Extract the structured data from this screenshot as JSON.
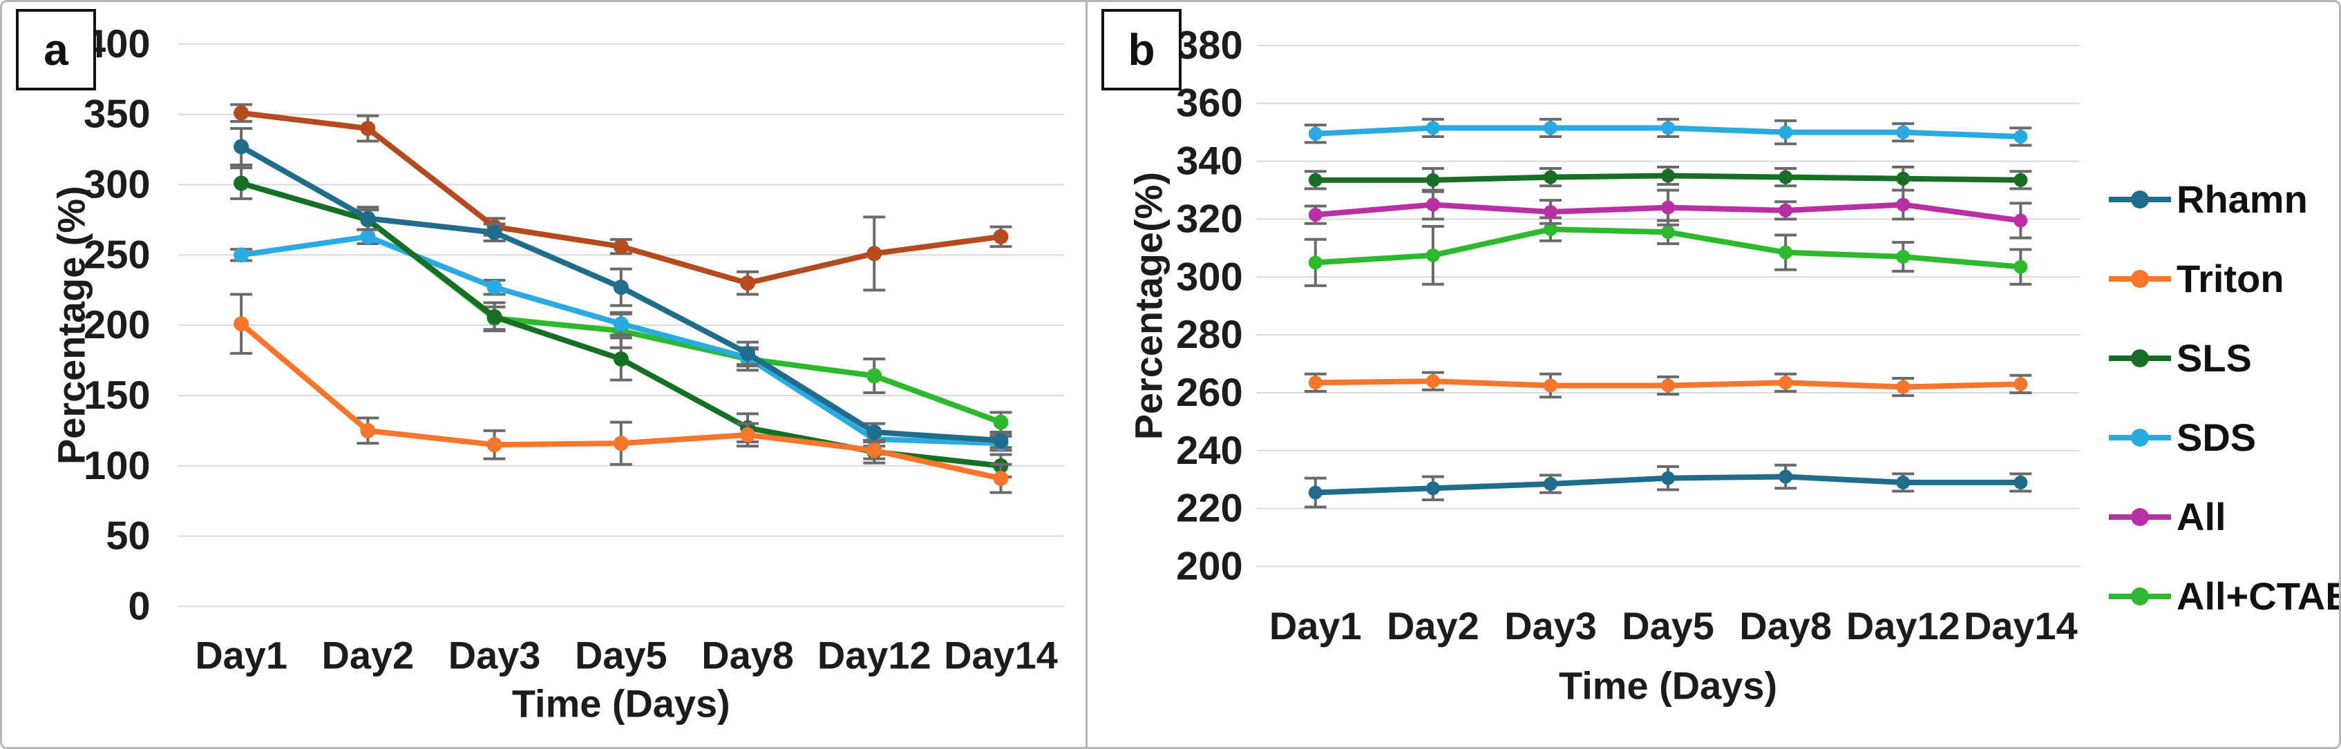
{
  "figure": {
    "panels": [
      {
        "label": "a",
        "ylabel": "Percentage (%)",
        "xlabel": "Time (Days)"
      },
      {
        "label": "b",
        "ylabel": "Percentage(%)",
        "xlabel": "Time (Days)"
      }
    ]
  },
  "colors": {
    "grid": "#d9d9d9",
    "error_bar": "#6a6a6a",
    "panel_border": "#b7b7b7",
    "text": "#1c1c1c",
    "rhamn": "#1f6c8b",
    "triton": "#f8752c",
    "sls": "#176f26",
    "sds": "#29abe2",
    "all_panel_a": "#b54a1e",
    "all_panel_b": "#ba30a4",
    "all_ctab": "#2db92d"
  },
  "legend": {
    "items": [
      {
        "label": "Rhamn",
        "color": "#1f6c8b"
      },
      {
        "label": "Triton",
        "color": "#f8752c"
      },
      {
        "label": "SLS",
        "color": "#176f26"
      },
      {
        "label": "SDS",
        "color": "#29abe2"
      },
      {
        "label": "All",
        "color": "#ba30a4"
      },
      {
        "label": "All+CTAB",
        "color": "#2db92d"
      }
    ]
  },
  "chart_data": [
    {
      "type": "line",
      "panel": "a",
      "title": "",
      "xlabel": "Time (Days)",
      "ylabel": "Percentage (%)",
      "categories": [
        "Day1",
        "Day2",
        "Day3",
        "Day5",
        "Day8",
        "Day12",
        "Day14"
      ],
      "ylim": [
        0,
        400
      ],
      "ytick_step": 50,
      "grid": true,
      "legend_position": "none",
      "series": [
        {
          "name": "Rhamn",
          "color": "#1f6c8b",
          "values": [
            327,
            276,
            266,
            227,
            180,
            124,
            118
          ],
          "errors": [
            13,
            8,
            6,
            13,
            8,
            6,
            5
          ]
        },
        {
          "name": "Triton",
          "color": "#f8752c",
          "values": [
            201,
            125,
            115,
            116,
            122,
            111,
            91
          ],
          "errors": [
            21,
            9,
            10,
            15,
            8,
            6,
            10
          ]
        },
        {
          "name": "SLS",
          "color": "#176f26",
          "values": [
            301,
            275,
            206,
            176,
            127,
            110,
            100
          ],
          "errors": [
            11,
            7,
            10,
            15,
            10,
            8,
            8
          ]
        },
        {
          "name": "SDS",
          "color": "#29abe2",
          "values": [
            250,
            263,
            227,
            201,
            177,
            119,
            116
          ],
          "errors": [
            4,
            5,
            5,
            8,
            6,
            5,
            5
          ]
        },
        {
          "name": "All",
          "color": "#b54a1e",
          "values": [
            351,
            340,
            270,
            256,
            230,
            251,
            263
          ],
          "errors": [
            6,
            9,
            6,
            5,
            8,
            26,
            7
          ]
        },
        {
          "name": "All+CTAB",
          "color": "#2db92d",
          "values": [
            301,
            275,
            205,
            196,
            176,
            164,
            131
          ],
          "errors": [
            0,
            0,
            8,
            12,
            8,
            12,
            7
          ]
        }
      ]
    },
    {
      "type": "line",
      "panel": "b",
      "title": "",
      "xlabel": "Time (Days)",
      "ylabel": "Percentage(%)",
      "categories": [
        "Day1",
        "Day2",
        "Day3",
        "Day5",
        "Day8",
        "Day12",
        "Day14"
      ],
      "ylim": [
        200,
        380
      ],
      "ytick_step": 20,
      "grid": true,
      "legend_position": "right",
      "series": [
        {
          "name": "Rhamn",
          "color": "#1f6c8b",
          "values": [
            225.5,
            227,
            228.5,
            230.5,
            231,
            229,
            229
          ],
          "errors": [
            5,
            4,
            3,
            4,
            4,
            3,
            3
          ]
        },
        {
          "name": "Triton",
          "color": "#f8752c",
          "values": [
            263.5,
            264,
            262.5,
            262.5,
            263.5,
            262,
            263
          ],
          "errors": [
            3,
            3,
            4,
            3,
            3,
            3,
            3
          ]
        },
        {
          "name": "SLS",
          "color": "#176f26",
          "values": [
            333.5,
            333.5,
            334.5,
            335,
            334.5,
            334,
            333.5
          ],
          "errors": [
            3,
            4,
            3,
            3,
            3,
            4,
            3
          ]
        },
        {
          "name": "SDS",
          "color": "#29abe2",
          "values": [
            349.5,
            351.5,
            351.5,
            351.5,
            350,
            350,
            348.5
          ],
          "errors": [
            3,
            3,
            3,
            3,
            4,
            3,
            3
          ]
        },
        {
          "name": "All",
          "color": "#ba30a4",
          "values": [
            321.5,
            325,
            322.5,
            324,
            323,
            325,
            319.5
          ],
          "errors": [
            3,
            5,
            4,
            6,
            3,
            5,
            6
          ]
        },
        {
          "name": "All+CTAB",
          "color": "#2db92d",
          "values": [
            305,
            307.5,
            316.5,
            315.5,
            308.5,
            307,
            303.5
          ],
          "errors": [
            8,
            10,
            4,
            4,
            6,
            5,
            6
          ]
        }
      ]
    }
  ]
}
